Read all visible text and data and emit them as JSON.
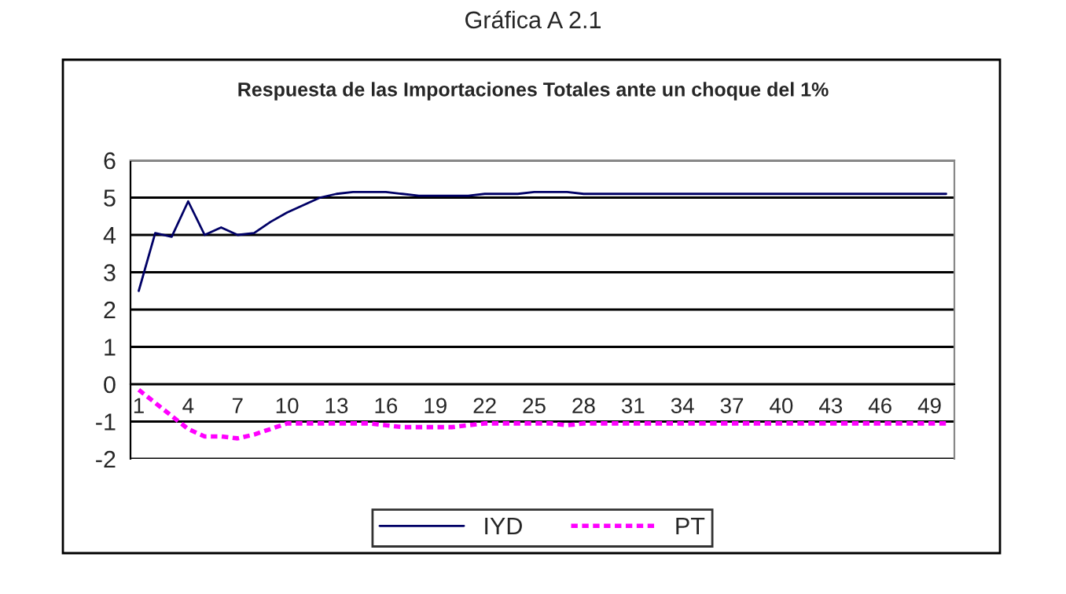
{
  "chart_data": {
    "type": "line",
    "title": "Gráfica A 2.1",
    "subtitle": "Respuesta de las Importaciones Totales ante un choque del 1%",
    "categories": [
      "1",
      null,
      null,
      "4",
      null,
      null,
      "7",
      null,
      null,
      "10",
      null,
      null,
      "13",
      null,
      null,
      "16",
      null,
      null,
      "19",
      null,
      null,
      "22",
      null,
      null,
      "25",
      null,
      null,
      "28",
      null,
      null,
      "31",
      null,
      null,
      "34",
      null,
      null,
      "37",
      null,
      null,
      "40",
      null,
      null,
      "43",
      null,
      null,
      "46",
      null,
      null,
      "49",
      null
    ],
    "series": [
      {
        "name": "IYD",
        "color": "#000066",
        "line_style": "solid",
        "values": [
          2.5,
          4.05,
          3.95,
          4.9,
          4.0,
          4.2,
          4.0,
          4.05,
          4.35,
          4.6,
          4.8,
          5.0,
          5.1,
          5.15,
          5.15,
          5.15,
          5.1,
          5.05,
          5.05,
          5.05,
          5.05,
          5.1,
          5.1,
          5.1,
          5.15,
          5.15,
          5.15,
          5.1,
          5.1,
          5.1,
          5.1,
          5.1,
          5.1,
          5.1,
          5.1,
          5.1,
          5.1,
          5.1,
          5.1,
          5.1,
          5.1,
          5.1,
          5.1,
          5.1,
          5.1,
          5.1,
          5.1,
          5.1,
          5.1,
          5.1
        ]
      },
      {
        "name": "PT",
        "color": "#ff00ff",
        "line_style": "dashed",
        "values": [
          -0.15,
          -0.5,
          -0.85,
          -1.2,
          -1.4,
          -1.4,
          -1.45,
          -1.35,
          -1.2,
          -1.05,
          -1.05,
          -1.05,
          -1.05,
          -1.05,
          -1.05,
          -1.1,
          -1.15,
          -1.15,
          -1.15,
          -1.15,
          -1.1,
          -1.05,
          -1.05,
          -1.05,
          -1.05,
          -1.05,
          -1.1,
          -1.05,
          -1.05,
          -1.05,
          -1.05,
          -1.05,
          -1.05,
          -1.05,
          -1.05,
          -1.05,
          -1.05,
          -1.05,
          -1.05,
          -1.05,
          -1.05,
          -1.05,
          -1.05,
          -1.05,
          -1.05,
          -1.05,
          -1.05,
          -1.05,
          -1.05,
          -1.05
        ]
      }
    ],
    "ylim": [
      -2,
      6
    ],
    "yticks": [
      -2,
      -1,
      0,
      1,
      2,
      3,
      4,
      5,
      6
    ],
    "grid": "y",
    "legend": "bottom",
    "marker": "none"
  }
}
